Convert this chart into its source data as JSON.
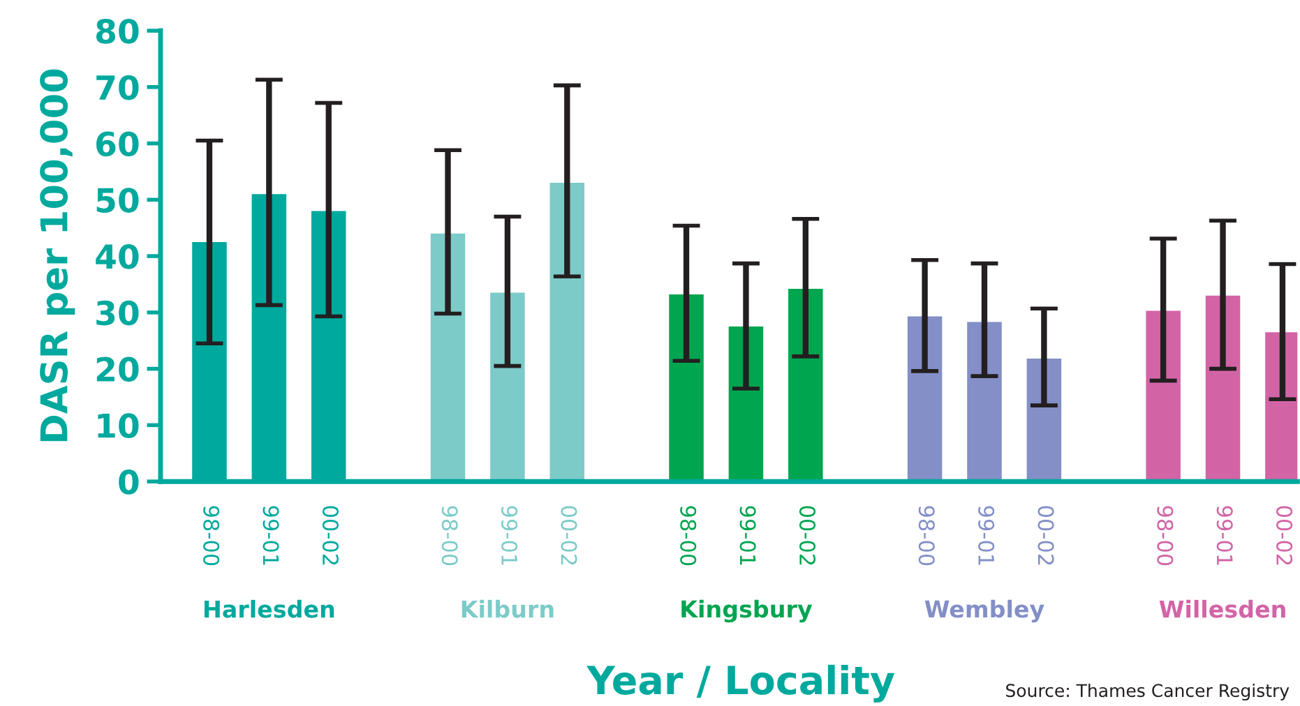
{
  "chart_data": {
    "type": "bar",
    "ylabel": "DASR per 100,000",
    "xlabel": "Year / Locality",
    "categories": [
      "98-00",
      "99-01",
      "00-02",
      null,
      "98-00",
      "99-01",
      "00-02",
      null,
      "98-00",
      "99-01",
      "00-02",
      null,
      "98-00",
      "99-01",
      "00-02",
      null,
      "98-00",
      "99-01",
      "00-02"
    ],
    "series": [
      {
        "name": "Harlesden",
        "color": "#00a99d",
        "values": [
          42.5,
          51,
          48,
          null,
          null,
          null,
          null,
          null,
          null,
          null,
          null,
          null,
          null,
          null,
          null,
          null,
          null,
          null,
          null
        ],
        "errors": [
          [
            24.5,
            60.5
          ],
          [
            31.3,
            71.3
          ],
          [
            29.3,
            67.2
          ],
          null,
          null,
          null,
          null,
          null,
          null,
          null,
          null,
          null,
          null,
          null,
          null,
          null,
          null,
          null,
          null
        ]
      },
      {
        "name": "Kilburn",
        "color": "#7ccbc8",
        "values": [
          null,
          null,
          null,
          null,
          44,
          33.5,
          53,
          null,
          null,
          null,
          null,
          null,
          null,
          null,
          null,
          null,
          null,
          null,
          null
        ],
        "errors": [
          null,
          null,
          null,
          null,
          [
            29.8,
            58.8
          ],
          [
            20.5,
            47
          ],
          [
            36.4,
            70.3
          ],
          null,
          null,
          null,
          null,
          null,
          null,
          null,
          null,
          null,
          null,
          null,
          null
        ]
      },
      {
        "name": "Kingsbury",
        "color": "#00a54f",
        "values": [
          null,
          null,
          null,
          null,
          null,
          null,
          null,
          null,
          33.2,
          27.5,
          34.2,
          null,
          null,
          null,
          null,
          null,
          null,
          null,
          null
        ],
        "errors": [
          null,
          null,
          null,
          null,
          null,
          null,
          null,
          null,
          [
            21.4,
            45.4
          ],
          [
            16.5,
            38.7
          ],
          [
            22.2,
            46.6
          ],
          null,
          null,
          null,
          null,
          null,
          null,
          null,
          null
        ]
      },
      {
        "name": "Wembley",
        "color": "#838fc6",
        "values": [
          null,
          null,
          null,
          null,
          null,
          null,
          null,
          null,
          null,
          null,
          null,
          null,
          29.3,
          28.3,
          21.8,
          null,
          null,
          null,
          null
        ],
        "errors": [
          null,
          null,
          null,
          null,
          null,
          null,
          null,
          null,
          null,
          null,
          null,
          null,
          [
            19.6,
            39.3
          ],
          [
            18.7,
            38.7
          ],
          [
            13.5,
            30.7
          ],
          null,
          null,
          null,
          null
        ]
      },
      {
        "name": "Willesden",
        "color": "#d264a6",
        "values": [
          null,
          null,
          null,
          null,
          null,
          null,
          null,
          null,
          null,
          null,
          null,
          null,
          null,
          null,
          null,
          null,
          30.3,
          33,
          26.5
        ],
        "errors": [
          null,
          null,
          null,
          null,
          null,
          null,
          null,
          null,
          null,
          null,
          null,
          null,
          null,
          null,
          null,
          null,
          [
            17.9,
            43.1
          ],
          [
            20,
            46.3
          ],
          [
            14.6,
            38.6
          ]
        ]
      }
    ],
    "ylim": [
      0,
      80
    ],
    "yticks": [
      0,
      10,
      20,
      30,
      40,
      50,
      60,
      70,
      80
    ],
    "grid": false,
    "legend": false,
    "annotations": [
      "Source: Thames Cancer Registry"
    ]
  }
}
